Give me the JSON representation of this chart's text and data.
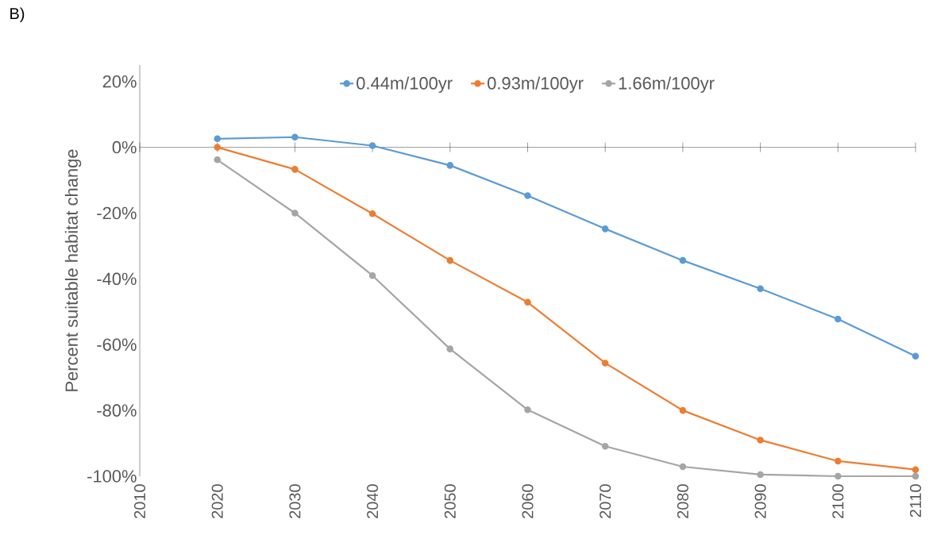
{
  "chart_data": {
    "type": "line",
    "title": "B)",
    "ylabel": "Percent suitable habitat change",
    "x": [
      2020,
      2030,
      2040,
      2050,
      2060,
      2070,
      2080,
      2090,
      2100,
      2110
    ],
    "series": [
      {
        "name": "0.44m/100yr",
        "color": "#5b9bd5",
        "values": [
          2.6,
          3.1,
          0.5,
          -5.5,
          -14.7,
          -24.8,
          -34.4,
          -43,
          -52.2,
          -63.5
        ]
      },
      {
        "name": "0.93m/100yr",
        "color": "#ed7d31",
        "values": [
          0,
          -6.7,
          -20.2,
          -34.4,
          -47.1,
          -65.6,
          -80,
          -89,
          -95.4,
          -98
        ]
      },
      {
        "name": "1.66m/100yr",
        "color": "#a5a5a5",
        "values": [
          -3.8,
          -20,
          -39,
          -61.3,
          -79.8,
          -90.9,
          -97.1,
          -99.5,
          -100,
          -100
        ]
      }
    ],
    "xlim": [
      2010,
      2110
    ],
    "xticks": [
      2010,
      2020,
      2030,
      2040,
      2050,
      2060,
      2070,
      2080,
      2090,
      2100,
      2110
    ],
    "ylim": [
      -100,
      25
    ],
    "yticks": [
      {
        "value": -100,
        "label": "-100%"
      },
      {
        "value": -80,
        "label": "-80%"
      },
      {
        "value": -60,
        "label": "-60%"
      },
      {
        "value": -40,
        "label": "-40%"
      },
      {
        "value": -20,
        "label": "-20%"
      },
      {
        "value": 0,
        "label": "0%"
      },
      {
        "value": 20,
        "label": "20%"
      }
    ],
    "legend": "top",
    "marker": "circle",
    "line_style": "solid"
  }
}
